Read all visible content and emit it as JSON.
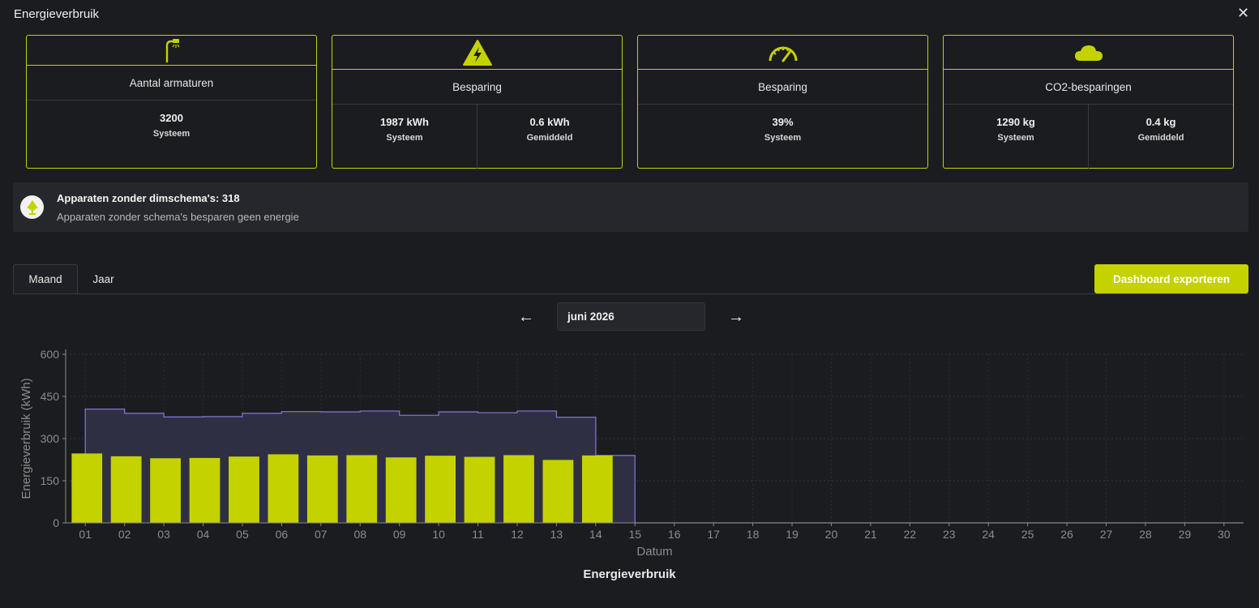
{
  "window": {
    "title": "Energieverbruik",
    "close_icon": "close-icon"
  },
  "cards": [
    {
      "icon": "street-lamp-icon",
      "label": "Aantal armaturen",
      "values": [
        {
          "value": "3200",
          "caption": "Systeem"
        }
      ]
    },
    {
      "icon": "high-voltage-icon",
      "label": "Besparing",
      "values": [
        {
          "value": "1987 kWh",
          "caption": "Systeem"
        },
        {
          "value": "0.6 kWh",
          "caption": "Gemiddeld"
        }
      ]
    },
    {
      "icon": "gauge-icon",
      "label": "Besparing",
      "values": [
        {
          "value": "39%",
          "caption": "Systeem"
        }
      ]
    },
    {
      "icon": "cloud-icon",
      "label": "CO2-besparingen",
      "values": [
        {
          "value": "1290 kg",
          "caption": "Systeem"
        },
        {
          "value": "0.4 kg",
          "caption": "Gemiddeld"
        }
      ]
    }
  ],
  "notice": {
    "icon": "tree-icon",
    "title": "Apparaten zonder dimschema's: 318",
    "text": "Apparaten zonder schema's besparen geen energie"
  },
  "tabs": [
    {
      "label": "Maand",
      "active": true
    },
    {
      "label": "Jaar",
      "active": false
    }
  ],
  "export_button": "Dashboard exporteren",
  "period": {
    "prev_icon": "arrow-left-icon",
    "next_icon": "arrow-right-icon",
    "value": "juni 2026"
  },
  "colors": {
    "accent": "#c4d200",
    "background": "#1b1c20",
    "baseline_line": "#7a73c8",
    "baseline_fill": "#2f2f44"
  },
  "chart_data": {
    "type": "bar",
    "title": "Energieverbruik",
    "xlabel": "Datum",
    "ylabel": "Energieverbruik (kWh)",
    "ylim": [
      0,
      600
    ],
    "yticks": [
      0,
      150,
      300,
      450,
      600
    ],
    "grid": true,
    "categories": [
      "01",
      "02",
      "03",
      "04",
      "05",
      "06",
      "07",
      "08",
      "09",
      "10",
      "11",
      "12",
      "13",
      "14",
      "15",
      "16",
      "17",
      "18",
      "19",
      "20",
      "21",
      "22",
      "23",
      "24",
      "25",
      "26",
      "27",
      "28",
      "29",
      "30"
    ],
    "series": [
      {
        "type": "bar",
        "values": [
          247,
          237,
          230,
          231,
          236,
          244,
          240,
          241,
          233,
          239,
          235,
          241,
          224,
          240,
          0,
          0,
          0,
          0,
          0,
          0,
          0,
          0,
          0,
          0,
          0,
          0,
          0,
          0,
          0,
          0
        ]
      },
      {
        "type": "step-area",
        "values": [
          405,
          390,
          377,
          378,
          390,
          396,
          395,
          398,
          383,
          395,
          392,
          398,
          376,
          240,
          0,
          0,
          0,
          0,
          0,
          0,
          0,
          0,
          0,
          0,
          0,
          0,
          0,
          0,
          0,
          0
        ]
      }
    ]
  }
}
